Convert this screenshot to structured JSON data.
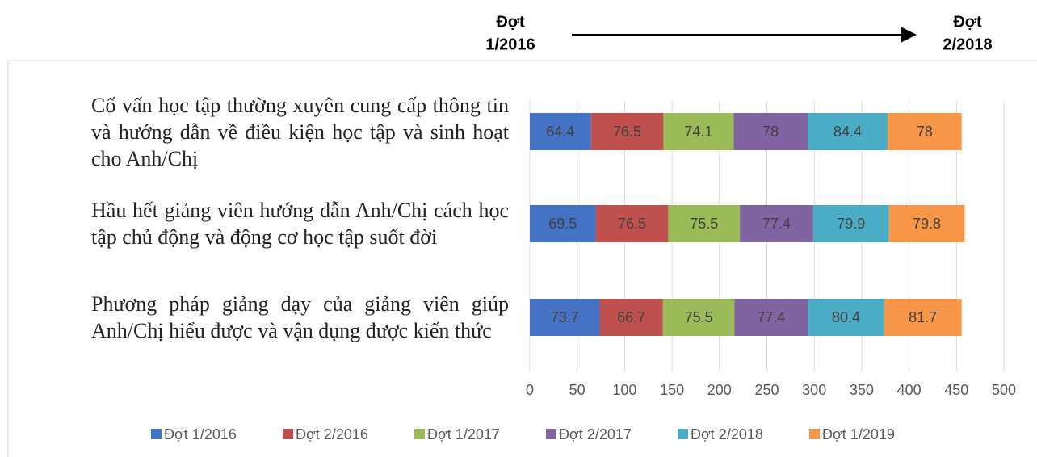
{
  "chart_data": {
    "type": "stacked-barh",
    "annotations": [
      {
        "lines": [
          "Đợt",
          "1/2016"
        ]
      },
      {
        "lines": [
          "Đợt",
          "2/2018"
        ]
      }
    ],
    "categories": [
      "Cố vấn học tập thường xuyên cung cấp thông tin và hướng dẫn về điều kiện học tập và sinh hoạt cho Anh/Chị",
      "Hầu hết giảng viên hướng dẫn Anh/Chị cách học tập chủ động và động cơ học tập suốt đời",
      "Phương pháp giảng dạy của giảng viên giúp Anh/Chị hiểu được và vận dụng được kiến thức"
    ],
    "series": [
      {
        "name": "Đợt 1/2016",
        "color": "#4472c4",
        "values": [
          64.4,
          69.5,
          73.7
        ]
      },
      {
        "name": "Đợt 2/2016",
        "color": "#c0504d",
        "values": [
          76.5,
          76.5,
          66.7
        ]
      },
      {
        "name": "Đợt 1/2017",
        "color": "#9bbb59",
        "values": [
          74.1,
          75.5,
          75.5
        ]
      },
      {
        "name": "Đợt 2/2017",
        "color": "#8064a2",
        "values": [
          78,
          77.4,
          77.4
        ]
      },
      {
        "name": "Đợt 2/2018",
        "color": "#4bacc6",
        "values": [
          84.4,
          79.9,
          80.4
        ]
      },
      {
        "name": "Đợt 1/2019",
        "color": "#f79646",
        "values": [
          78,
          79.8,
          81.7
        ]
      }
    ],
    "xlim": [
      0,
      500
    ],
    "xticks": [
      0,
      50,
      100,
      150,
      200,
      250,
      300,
      350,
      400,
      450,
      500
    ],
    "grid": true,
    "legend": "bottom"
  }
}
